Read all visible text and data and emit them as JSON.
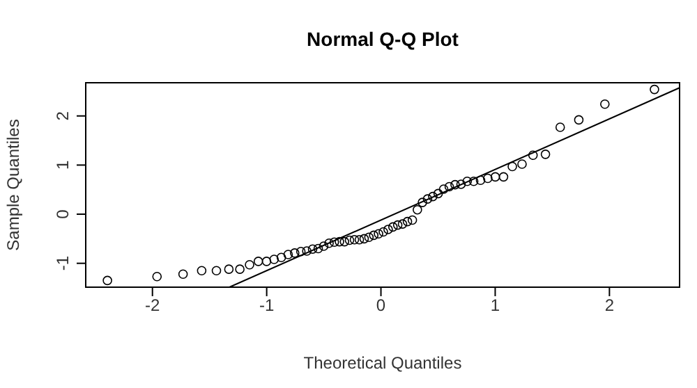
{
  "chart_data": {
    "type": "scatter",
    "title": "Normal Q-Q Plot",
    "xlabel": "Theoretical Quantiles",
    "ylabel": "Sample Quantiles",
    "xlim": [
      -2.59,
      2.62
    ],
    "ylim": [
      -1.5,
      2.69
    ],
    "xticks": [
      -2,
      -1,
      0,
      1,
      2
    ],
    "yticks": [
      -1,
      0,
      1,
      2
    ],
    "series": [
      {
        "marker": "circle",
        "color": "#000000",
        "x": [
          -2.394,
          -1.96,
          -1.732,
          -1.569,
          -1.44,
          -1.331,
          -1.235,
          -1.15,
          -1.073,
          -1.001,
          -0.935,
          -0.872,
          -0.812,
          -0.755,
          -0.701,
          -0.649,
          -0.598,
          -0.549,
          -0.501,
          -0.454,
          -0.408,
          -0.363,
          -0.319,
          -0.275,
          -0.232,
          -0.189,
          -0.147,
          -0.105,
          -0.063,
          -0.021,
          0.021,
          0.063,
          0.105,
          0.147,
          0.189,
          0.232,
          0.275,
          0.319,
          0.363,
          0.408,
          0.454,
          0.501,
          0.549,
          0.598,
          0.649,
          0.701,
          0.755,
          0.812,
          0.872,
          0.935,
          1.001,
          1.073,
          1.15,
          1.235,
          1.331,
          1.44,
          1.569,
          1.732,
          1.96,
          2.394
        ],
        "values": [
          -1.35,
          -1.27,
          -1.22,
          -1.15,
          -1.15,
          -1.12,
          -1.12,
          -1.03,
          -0.96,
          -0.96,
          -0.92,
          -0.88,
          -0.82,
          -0.79,
          -0.76,
          -0.75,
          -0.71,
          -0.7,
          -0.65,
          -0.59,
          -0.57,
          -0.56,
          -0.56,
          -0.53,
          -0.52,
          -0.52,
          -0.5,
          -0.47,
          -0.43,
          -0.4,
          -0.36,
          -0.31,
          -0.26,
          -0.22,
          -0.2,
          -0.15,
          -0.12,
          0.09,
          0.24,
          0.31,
          0.36,
          0.42,
          0.51,
          0.56,
          0.6,
          0.61,
          0.67,
          0.67,
          0.69,
          0.73,
          0.76,
          0.76,
          0.97,
          1.02,
          1.2,
          1.22,
          1.77,
          1.92,
          2.24,
          2.54
        ]
      },
      {
        "type": "line",
        "marker": "none",
        "color": "#000000",
        "x": [
          -1.34,
          2.61
        ],
        "values": [
          -1.5,
          2.57
        ]
      }
    ]
  }
}
